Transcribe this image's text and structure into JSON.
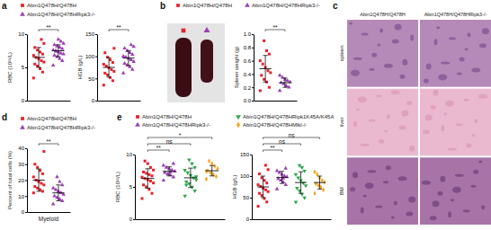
{
  "chart_data": [
    {
      "type": "scatter",
      "panel": "a",
      "ylabel": "RBC (10¹²/L)",
      "ylim": [
        0,
        10
      ],
      "yticks": [
        0,
        5,
        10
      ],
      "tick_labels": "y",
      "legend": "top",
      "series": [
        {
          "name": "Abin1Q478H/Q478H",
          "color": "#e8202a",
          "marker": "square",
          "values": [
            3.4,
            4.3,
            4.8,
            5.2,
            5.5,
            5.8,
            6.0,
            6.3,
            6.5,
            6.8,
            7.0,
            7.3,
            7.6,
            8.0,
            8.6,
            9.2
          ],
          "mean": 6.5,
          "error": 1.5
        },
        {
          "name": "Abin1Q478H/Q478HRipk3-/-",
          "color": "#9b3fb5",
          "marker": "triangle",
          "values": [
            5.3,
            6.0,
            6.3,
            6.6,
            6.8,
            7.0,
            7.1,
            7.3,
            7.5,
            7.6,
            7.8,
            8.0,
            8.2,
            8.4,
            8.6,
            8.9,
            9.2,
            7.4
          ],
          "mean": 7.5,
          "error": 0.9
        }
      ],
      "annotations": [
        {
          "text": "**",
          "groups": [
            0,
            1
          ]
        }
      ]
    },
    {
      "type": "scatter",
      "ylabel": "HGB (g/L)",
      "ylim": [
        0,
        150
      ],
      "yticks": [
        0,
        50,
        100,
        150
      ],
      "tick_labels": "y",
      "series": [
        {
          "color": "#e8202a",
          "marker": "square",
          "values": [
            35,
            45,
            52,
            58,
            62,
            66,
            70,
            74,
            78,
            82,
            86,
            92,
            98,
            108,
            118
          ],
          "mean": 75,
          "error": 22
        },
        {
          "color": "#9b3fb5",
          "marker": "triangle",
          "values": [
            62,
            70,
            76,
            80,
            84,
            88,
            92,
            95,
            98,
            100,
            104,
            108,
            112,
            118,
            122,
            126
          ],
          "mean": 96,
          "error": 17
        }
      ],
      "annotations": [
        {
          "text": "**",
          "groups": [
            0,
            1
          ]
        }
      ]
    },
    {
      "type": "scatter",
      "panel": "b",
      "ylabel": "Spleen weight (g)",
      "ylim": [
        0,
        1
      ],
      "yticks": [
        {
          "value": 0,
          "label": "0.0"
        },
        {
          "value": 0.2,
          "label": "0.2"
        },
        {
          "value": 0.4,
          "label": "0.4"
        },
        {
          "value": 0.6,
          "label": "0.6"
        },
        {
          "value": 0.8,
          "label": "0.8"
        },
        {
          "value": 1,
          "label": "1.0"
        }
      ],
      "tick_labels": "y",
      "legend": "top",
      "series": [
        {
          "name": "Abin1Q478H/Q478H",
          "color": "#e8202a",
          "marker": "square",
          "values": [
            0.15,
            0.2,
            0.28,
            0.32,
            0.38,
            0.42,
            0.45,
            0.5,
            0.55,
            0.6,
            0.7,
            0.75,
            0.9
          ],
          "mean": 0.48,
          "error": 0.2
        },
        {
          "name": "Abin1Q478H/Q478HRipk3-/-",
          "color": "#9b3fb5",
          "marker": "triangle",
          "values": [
            0.15,
            0.2,
            0.22,
            0.25,
            0.27,
            0.28,
            0.3,
            0.32,
            0.35,
            0.38
          ],
          "mean": 0.27,
          "error": 0.07
        }
      ],
      "annotations": [
        {
          "text": "**",
          "groups": [
            0,
            1
          ]
        }
      ]
    },
    {
      "type": "image_grid",
      "panel": "c",
      "columns": [
        "Abin1Q478H/Q478H",
        "Abin1Q478H/Q478HRipk3-/-"
      ],
      "rows": [
        "spleen",
        "liver",
        "BM"
      ]
    },
    {
      "type": "scatter",
      "panel": "d",
      "ylabel": "Percent of total cells (%)",
      "xlabel": "Myeloid",
      "ylim": [
        0,
        40
      ],
      "yticks": [
        0,
        10,
        20,
        30,
        40
      ],
      "tick_labels": "y",
      "legend": "top",
      "series": [
        {
          "name": "Abin1Q478H/Q478H",
          "color": "#e8202a",
          "marker": "square",
          "values": [
            12,
            13,
            14,
            15,
            16,
            17,
            18,
            19,
            20,
            22,
            24,
            26,
            28,
            30,
            38
          ],
          "mean": 20,
          "error": 7
        },
        {
          "name": "Abin1Q478H/Q478HRipk3-/-",
          "color": "#9b3fb5",
          "marker": "triangle",
          "values": [
            5,
            7,
            8,
            9,
            10,
            11,
            12,
            13,
            14,
            15,
            17,
            19,
            22
          ],
          "mean": 12,
          "error": 5
        }
      ],
      "annotations": [
        {
          "text": "**",
          "groups": [
            0,
            1
          ]
        }
      ]
    },
    {
      "type": "scatter",
      "panel": "e",
      "ylabel": "RBC (10¹²/L)",
      "ylim": [
        0,
        10
      ],
      "yticks": [
        0,
        5,
        10
      ],
      "tick_labels": "y",
      "legend": "top",
      "series": [
        {
          "name": "Abin1Q478H/Q478H",
          "color": "#e8202a",
          "marker": "square",
          "values": [
            3.2,
            4.0,
            4.6,
            5.0,
            5.3,
            5.6,
            5.9,
            6.1,
            6.3,
            6.5,
            6.7,
            6.9,
            7.1,
            7.3,
            7.6,
            8.0,
            8.6,
            9.0
          ],
          "mean": 6.3,
          "error": 1.5
        },
        {
          "name": "Abin1Q478H/Q478HRipk3-/-",
          "color": "#9b3fb5",
          "marker": "triangle",
          "values": [
            6.0,
            6.5,
            6.8,
            7.0,
            7.2,
            7.4,
            7.6,
            7.8,
            8.0,
            8.3,
            8.6,
            7.3
          ],
          "mean": 7.4,
          "error": 0.7
        },
        {
          "name": "Abin1Q478H/Q478HRipk1K45A/K45A",
          "color": "#2aa84a",
          "marker": "triangle-down",
          "values": [
            3.6,
            4.4,
            5.0,
            5.5,
            5.8,
            6.1,
            6.4,
            6.8,
            7.2,
            7.6,
            8.0,
            8.6,
            9.2,
            5.3,
            6.6
          ],
          "mean": 6.4,
          "error": 1.5
        },
        {
          "name": "Abin1Q478H/Q478HMlkl-/-",
          "color": "#f5a623",
          "marker": "diamond",
          "values": [
            6.2,
            6.6,
            6.9,
            7.2,
            7.5,
            7.8,
            8.2,
            8.6,
            9.0,
            7.4
          ],
          "mean": 7.5,
          "error": 0.8
        }
      ],
      "annotations": [
        {
          "text": "**",
          "groups": [
            0,
            1
          ]
        },
        {
          "text": "ns",
          "groups": [
            0,
            2
          ]
        },
        {
          "text": "*",
          "groups": [
            0,
            3
          ]
        }
      ]
    },
    {
      "type": "scatter",
      "ylabel": "HGB (g/L)",
      "ylim": [
        0,
        150
      ],
      "yticks": [
        0,
        50,
        100,
        150
      ],
      "tick_labels": "y",
      "series": [
        {
          "color": "#e8202a",
          "marker": "square",
          "values": [
            30,
            40,
            48,
            55,
            60,
            64,
            68,
            72,
            76,
            80,
            84,
            90,
            96,
            105,
            115,
            125
          ],
          "mean": 75,
          "error": 25
        },
        {
          "color": "#9b3fb5",
          "marker": "triangle",
          "values": [
            70,
            80,
            86,
            90,
            94,
            98,
            100,
            104,
            108,
            112,
            118,
            95
          ],
          "mean": 97,
          "error": 14
        },
        {
          "color": "#2aa84a",
          "marker": "triangle-down",
          "values": [
            40,
            50,
            58,
            66,
            72,
            78,
            84,
            90,
            96,
            104,
            112,
            120,
            125
          ],
          "mean": 85,
          "error": 25
        },
        {
          "color": "#f5a623",
          "marker": "diamond",
          "values": [
            60,
            68,
            74,
            78,
            82,
            86,
            90,
            96,
            104,
            110
          ],
          "mean": 85,
          "error": 15
        }
      ],
      "annotations": [
        {
          "text": "**",
          "groups": [
            0,
            1
          ]
        },
        {
          "text": "ns",
          "groups": [
            0,
            2
          ]
        },
        {
          "text": "ns",
          "groups": [
            0,
            3
          ]
        }
      ]
    }
  ]
}
